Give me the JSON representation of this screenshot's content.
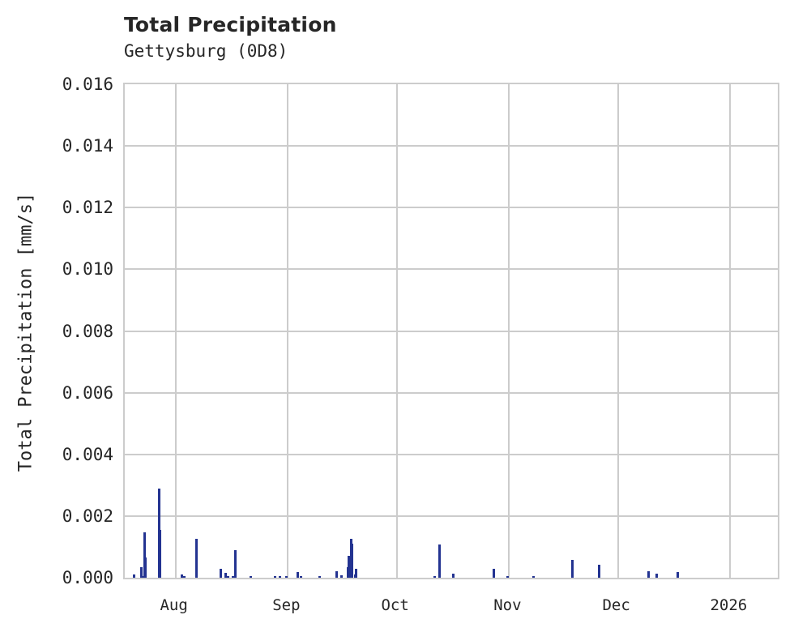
{
  "header": {
    "title": "Total Precipitation",
    "subtitle": "Gettysburg (0D8)"
  },
  "axes": {
    "ylabel": "Total Precipitation [mm/s]",
    "yticks": [
      "0.000",
      "0.002",
      "0.004",
      "0.006",
      "0.008",
      "0.010",
      "0.012",
      "0.014",
      "0.016"
    ],
    "xticks": [
      "Aug",
      "Sep",
      "Oct",
      "Nov",
      "Dec",
      "2026"
    ]
  },
  "colors": {
    "bar": "#233391",
    "grid": "#cccccc",
    "text": "#262626"
  },
  "chart_data": {
    "type": "bar",
    "title": "Total Precipitation",
    "subtitle": "Gettysburg (0D8)",
    "xlabel": "",
    "ylabel": "Total Precipitation [mm/s]",
    "ylim": [
      0,
      0.016
    ],
    "xlim": [
      "2025-07-18",
      "2026-01-15"
    ],
    "grid": true,
    "legend": null,
    "x_tick_labels": [
      "Aug",
      "Sep",
      "Oct",
      "Nov",
      "Dec",
      "2026"
    ],
    "y_tick_labels": [
      "0.000",
      "0.002",
      "0.004",
      "0.006",
      "0.008",
      "0.010",
      "0.012",
      "0.014",
      "0.016"
    ],
    "series": [
      {
        "name": "Total Precipitation",
        "color": "#233391",
        "points": [
          {
            "date": "2025-07-20",
            "value": 0.0001
          },
          {
            "date": "2025-07-22",
            "value": 5e-05
          },
          {
            "date": "2025-07-22",
            "value": 0.00035
          },
          {
            "date": "2025-07-23",
            "value": 0.00065
          },
          {
            "date": "2025-07-23",
            "value": 0.00148
          },
          {
            "date": "2025-07-27",
            "value": 0.00155
          },
          {
            "date": "2025-07-27",
            "value": 0.00288
          },
          {
            "date": "2025-08-02",
            "value": 0.0001
          },
          {
            "date": "2025-08-03",
            "value": 5e-05
          },
          {
            "date": "2025-08-06",
            "value": 0.00127
          },
          {
            "date": "2025-08-13",
            "value": 0.00028
          },
          {
            "date": "2025-08-14",
            "value": 0.00015
          },
          {
            "date": "2025-08-15",
            "value": 5e-05
          },
          {
            "date": "2025-08-16",
            "value": 5e-05
          },
          {
            "date": "2025-08-17",
            "value": 0.0009
          },
          {
            "date": "2025-08-21",
            "value": 5e-05
          },
          {
            "date": "2025-08-28",
            "value": 5e-05
          },
          {
            "date": "2025-08-29",
            "value": 5e-05
          },
          {
            "date": "2025-08-31",
            "value": 5e-05
          },
          {
            "date": "2025-09-03",
            "value": 0.00018
          },
          {
            "date": "2025-09-04",
            "value": 5e-05
          },
          {
            "date": "2025-09-09",
            "value": 5e-05
          },
          {
            "date": "2025-09-14",
            "value": 0.0002
          },
          {
            "date": "2025-09-15",
            "value": 8e-05
          },
          {
            "date": "2025-09-17",
            "value": 0.00035
          },
          {
            "date": "2025-09-17",
            "value": 0.0007
          },
          {
            "date": "2025-09-18",
            "value": 0.00127
          },
          {
            "date": "2025-09-18",
            "value": 0.0011
          },
          {
            "date": "2025-09-19",
            "value": 0.0001
          },
          {
            "date": "2025-09-19",
            "value": 0.00028
          },
          {
            "date": "2025-10-11",
            "value": 5e-05
          },
          {
            "date": "2025-10-12",
            "value": 0.00107
          },
          {
            "date": "2025-10-16",
            "value": 0.00012
          },
          {
            "date": "2025-10-27",
            "value": 0.00028
          },
          {
            "date": "2025-10-31",
            "value": 5e-05
          },
          {
            "date": "2025-11-07",
            "value": 5e-05
          },
          {
            "date": "2025-11-18",
            "value": 0.00058
          },
          {
            "date": "2025-11-25",
            "value": 0.00042
          },
          {
            "date": "2025-12-09",
            "value": 0.0002
          },
          {
            "date": "2025-12-11",
            "value": 0.00012
          },
          {
            "date": "2025-12-17",
            "value": 0.00018
          }
        ]
      }
    ]
  }
}
